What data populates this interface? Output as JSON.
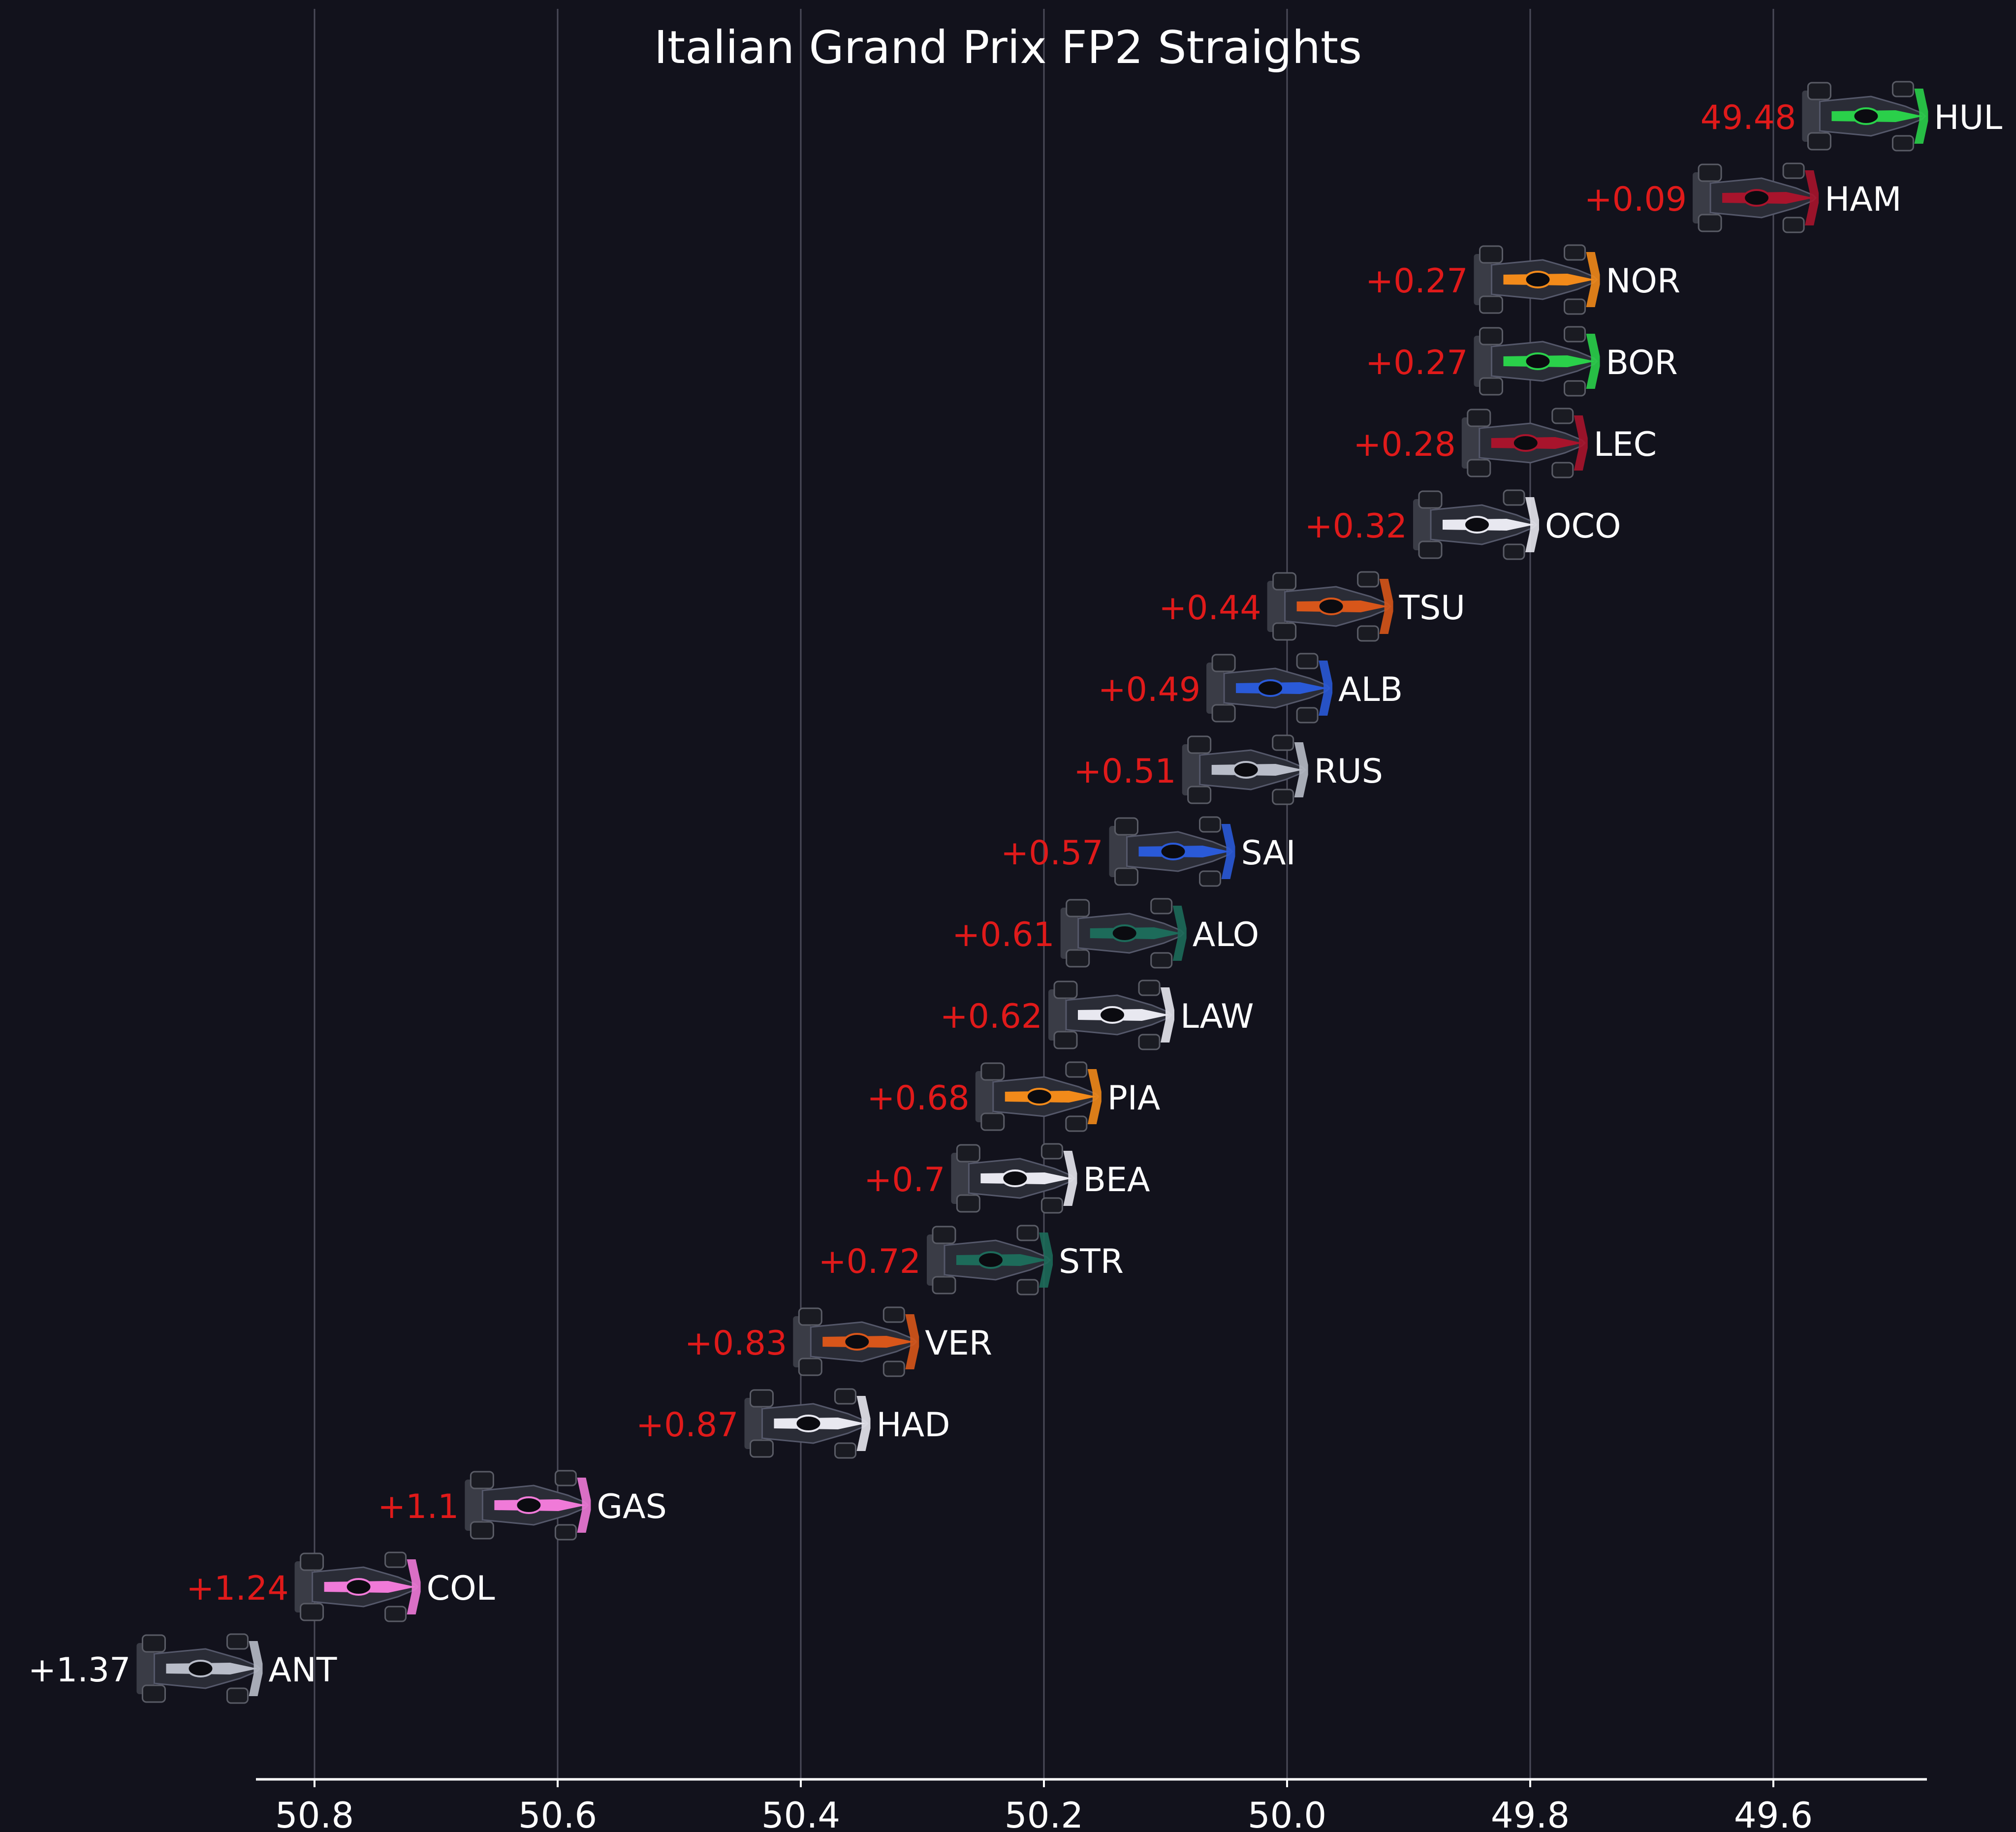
{
  "chart_data": {
    "type": "scatter",
    "title": "Italian Grand Prix FP2 Straights",
    "xlabel": "",
    "ylabel": "",
    "xlim": [
      50.85,
      49.48
    ],
    "x_inverted": true,
    "xticks": [
      50.8,
      50.6,
      50.4,
      50.2,
      50.0,
      49.8,
      49.6
    ],
    "xtick_labels": [
      "50.8",
      "50.6",
      "50.4",
      "50.2",
      "50.0",
      "49.8",
      "49.6"
    ],
    "grid": "vertical",
    "marker": "car-icon",
    "points": [
      {
        "driver": "HUL",
        "x": 49.48,
        "label": "49.48",
        "color": "#2ad04a"
      },
      {
        "driver": "HAM",
        "x": 49.57,
        "label": "+0.09",
        "color": "#a8142c"
      },
      {
        "driver": "NOR",
        "x": 49.75,
        "label": "+0.27",
        "color": "#f28a1a"
      },
      {
        "driver": "BOR",
        "x": 49.75,
        "label": "+0.27",
        "color": "#2ad04a"
      },
      {
        "driver": "LEC",
        "x": 49.76,
        "label": "+0.28",
        "color": "#a8142c"
      },
      {
        "driver": "OCO",
        "x": 49.8,
        "label": "+0.32",
        "color": "#e8e8f0"
      },
      {
        "driver": "TSU",
        "x": 49.92,
        "label": "+0.44",
        "color": "#d8561a"
      },
      {
        "driver": "ALB",
        "x": 49.97,
        "label": "+0.49",
        "color": "#2a5ad8"
      },
      {
        "driver": "RUS",
        "x": 49.99,
        "label": "+0.51",
        "color": "#b8bcc8"
      },
      {
        "driver": "SAI",
        "x": 50.05,
        "label": "+0.57",
        "color": "#2a5ad8"
      },
      {
        "driver": "ALO",
        "x": 50.09,
        "label": "+0.61",
        "color": "#1d6b5a"
      },
      {
        "driver": "LAW",
        "x": 50.1,
        "label": "+0.62",
        "color": "#e8e8f0"
      },
      {
        "driver": "PIA",
        "x": 50.16,
        "label": "+0.68",
        "color": "#f28a1a"
      },
      {
        "driver": "BEA",
        "x": 50.18,
        "label": "+0.7",
        "color": "#e8e8f0"
      },
      {
        "driver": "STR",
        "x": 50.2,
        "label": "+0.72",
        "color": "#1d6b5a"
      },
      {
        "driver": "VER",
        "x": 50.31,
        "label": "+0.83",
        "color": "#d8561a"
      },
      {
        "driver": "HAD",
        "x": 50.35,
        "label": "+0.87",
        "color": "#e8e8f0"
      },
      {
        "driver": "GAS",
        "x": 50.58,
        "label": "+1.1",
        "color": "#f07ad8"
      },
      {
        "driver": "COL",
        "x": 50.72,
        "label": "+1.24",
        "color": "#f07ad8"
      },
      {
        "driver": "ANT",
        "x": 50.85,
        "label": "+1.37",
        "color": "#b8bcc8"
      }
    ],
    "colors": {
      "background": "#12121c",
      "grid": "#4a4a58",
      "axis": "#ffffff",
      "text": "#ffffff",
      "gap": "#e01a1a",
      "last_gap": "#ffffff",
      "car_body": "#2a2c36"
    }
  }
}
